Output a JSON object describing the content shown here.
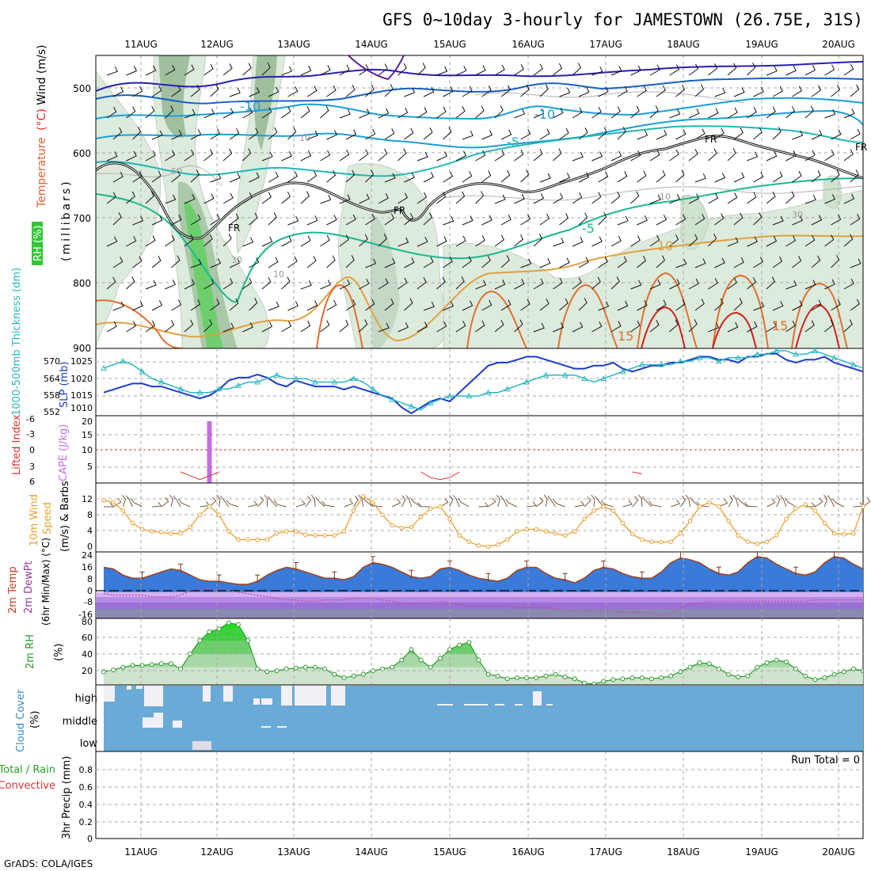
{
  "title": "GFS 0~10day 3-hourly for JAMESTOWN (26.75E, 31S)",
  "footer": "GrADS: COLA/IGES",
  "date_labels": [
    "11AUG",
    "12AUG",
    "13AUG",
    "14AUG",
    "15AUG",
    "16AUG",
    "17AUG",
    "18AUG",
    "19AUG",
    "20AUG"
  ],
  "panels": {
    "upper": {
      "label_parts": [
        {
          "text": "Wind (m/s)",
          "color": "#000000"
        },
        {
          "text": "(°C)",
          "color": "#e02020"
        },
        {
          "text": "Temperature",
          "color": "#3030d0"
        }
      ],
      "rh_label": "RH (%)",
      "ylabel": "(millibars)",
      "yticks": [
        "500",
        "600",
        "700",
        "800",
        "900"
      ]
    },
    "thickness": {
      "label_left": "1000-500mb Thickness (dm)",
      "label_right": "SLP (mb)",
      "left_ticks": [
        "570",
        "564",
        "558",
        "552"
      ],
      "right_ticks": [
        "1025",
        "1020",
        "1015",
        "1010"
      ]
    },
    "cape": {
      "label_left": "Lifted Index",
      "label_right": "CAPE (J/kg)",
      "left_ticks": [
        "-6",
        "-3",
        "0",
        "3",
        "6"
      ],
      "right_ticks": [
        "20",
        "15",
        "10",
        "5"
      ]
    },
    "wind": {
      "label_1": "10m Wind",
      "label_2": "Speed",
      "label_3": "(m/s) & Barbs",
      "yticks": [
        "12",
        "8",
        "4",
        "0"
      ]
    },
    "temp": {
      "label_1": "2m Temp",
      "label_2": "2m DewPt",
      "label_3": "(6hr Min/Max) (°C)",
      "yticks": [
        "24",
        "16",
        "8",
        "0",
        "-8",
        "-16"
      ]
    },
    "rh": {
      "label": "2m RH",
      "unit": "(%)",
      "yticks": [
        "80",
        "60",
        "40",
        "20"
      ]
    },
    "cloud": {
      "label": "Cloud Cover",
      "unit": "(%)",
      "levels": [
        "high",
        "middle",
        "low"
      ]
    },
    "precip": {
      "label_1": "Total / Rain",
      "label_2": "Convective",
      "ylabel": "3hr Precip (mm)",
      "yticks": [
        "0.8",
        "0.6",
        "0.4",
        "0.2",
        "0"
      ],
      "run_total": "Run Total = 0"
    }
  },
  "contour_labels": [
    "-10",
    "-10",
    "-5",
    "-5",
    "10",
    "15",
    "15",
    "FR",
    "FR",
    "FR",
    "FR",
    "10",
    "10",
    "30",
    "50",
    "30",
    "10"
  ],
  "colors": {
    "slp": "#1c3cc8",
    "thickness": "#2ab6c0",
    "wind_speed": "#e8a030",
    "barb": "#7a5a40",
    "rh_line": "#2a9a2a",
    "cloud": "#6aaad6",
    "cape_bar": "#c070e0",
    "lifted_index": "#e03030"
  },
  "chart_data": [
    {
      "type": "line",
      "title": "1000-500mb Thickness (dm) / SLP (mb)",
      "x": [
        0,
        3,
        6,
        9,
        12,
        15,
        18,
        21,
        24,
        27,
        30,
        33,
        36,
        39,
        42,
        45,
        48,
        51,
        54,
        57,
        60,
        63,
        66,
        69,
        72,
        75,
        78,
        81,
        84,
        87,
        90,
        93,
        96,
        99,
        102,
        105,
        108,
        111,
        114,
        117,
        120,
        123,
        126,
        129,
        132,
        135,
        138,
        141,
        144,
        147,
        150,
        153,
        156,
        159,
        162,
        165,
        168,
        171,
        174,
        177,
        180,
        183,
        186,
        189,
        192,
        195,
        198,
        201,
        204,
        207,
        210,
        213,
        216,
        219,
        222,
        225,
        228,
        231,
        234,
        237
      ],
      "series": [
        {
          "name": "SLP",
          "axis": "right",
          "values": [
            1014,
            1015,
            1016,
            1017,
            1017,
            1016,
            1016,
            1015,
            1014,
            1013,
            1012,
            1013,
            1015,
            1018,
            1019,
            1019,
            1020,
            1019,
            1017,
            1016,
            1018,
            1017,
            1016,
            1016,
            1016,
            1015,
            1016,
            1015,
            1014,
            1013,
            1012,
            1009,
            1007,
            1009,
            1011,
            1012,
            1011,
            1014,
            1017,
            1020,
            1023,
            1024,
            1024,
            1025,
            1026,
            1026,
            1025,
            1024,
            1023,
            1022,
            1022,
            1023,
            1023,
            1024,
            1022,
            1021,
            1022,
            1023,
            1023,
            1024,
            1024,
            1025,
            1026,
            1026,
            1025,
            1025,
            1024,
            1026,
            1026,
            1027,
            1027,
            1025,
            1024,
            1025,
            1025,
            1026,
            1024,
            1023,
            1022,
            1021
          ]
        },
        {
          "name": "Thickness",
          "axis": "left",
          "values": [
            565,
            566,
            567,
            566,
            564,
            562,
            561,
            560,
            559,
            558,
            558,
            558,
            559,
            559,
            560,
            561,
            561,
            562,
            563,
            562,
            562,
            562,
            561,
            561,
            561,
            561,
            562,
            561,
            559,
            557,
            556,
            555,
            554,
            553,
            555,
            556,
            557,
            557,
            557,
            557,
            558,
            558,
            559,
            560,
            561,
            562,
            563,
            563,
            563,
            563,
            562,
            561,
            562,
            563,
            564,
            565,
            566,
            566,
            566,
            566,
            567,
            567,
            568,
            568,
            567,
            568,
            568,
            568,
            569,
            569,
            570,
            570,
            569,
            569,
            570,
            569,
            568,
            567,
            566,
            565
          ]
        }
      ],
      "ylim_left": [
        552,
        570
      ],
      "ylim_right": [
        1007,
        1028
      ]
    },
    {
      "type": "bar",
      "title": "Lifted Index / CAPE (J/kg)",
      "series": [
        {
          "name": "CAPE",
          "points": [
            {
              "x": 33,
              "y": 20
            }
          ]
        },
        {
          "name": "Lifted Index",
          "points": [
            {
              "x": 24,
              "y": 6
            },
            {
              "x": 27,
              "y": 5
            },
            {
              "x": 30,
              "y": 4
            },
            {
              "x": 33,
              "y": 5
            },
            {
              "x": 36,
              "y": 6
            },
            {
              "x": 99,
              "y": 6
            },
            {
              "x": 102,
              "y": 4.5
            },
            {
              "x": 105,
              "y": 4
            },
            {
              "x": 108,
              "y": 4.5
            },
            {
              "x": 111,
              "y": 6
            },
            {
              "x": 165,
              "y": 6
            },
            {
              "x": 168,
              "y": 5.5
            }
          ]
        }
      ],
      "ylim_right": [
        0,
        20
      ],
      "ylim_left": [
        -6,
        6
      ]
    },
    {
      "type": "line",
      "title": "10m Wind Speed (m/s)",
      "x": [
        0,
        3,
        6,
        9,
        12,
        15,
        18,
        21,
        24,
        27,
        30,
        33,
        36,
        39,
        42,
        45,
        48,
        51,
        54,
        57,
        60,
        63,
        66,
        69,
        72,
        75,
        78,
        81,
        84,
        87,
        90,
        93,
        96,
        99,
        102,
        105,
        108,
        111,
        114,
        117,
        120,
        123,
        126,
        129,
        132,
        135,
        138,
        141,
        144,
        147,
        150,
        153,
        156,
        159,
        162,
        165,
        168,
        171,
        174,
        177,
        180,
        183,
        186,
        189,
        192,
        195,
        198,
        201,
        204,
        207,
        210,
        213,
        216,
        219,
        222,
        225,
        228,
        231,
        234,
        237
      ],
      "series": [
        {
          "name": "10m Wind Speed",
          "values": [
            11.5,
            11,
            9,
            6,
            4.5,
            4,
            3.8,
            3.5,
            3.5,
            5,
            8,
            10,
            8,
            4,
            2,
            2,
            2,
            2,
            3.5,
            4,
            4,
            3.2,
            3,
            3,
            3,
            4,
            9,
            12.5,
            11,
            8,
            5.5,
            4.8,
            5,
            7.5,
            9.5,
            10,
            7,
            3,
            1.5,
            0.6,
            0.3,
            0.8,
            2,
            4,
            4.5,
            4.5,
            4,
            3.5,
            3,
            4,
            7,
            9,
            10,
            9,
            6,
            3.3,
            2,
            1.5,
            1.4,
            1.5,
            3.5,
            6.5,
            10,
            11,
            10,
            6.5,
            3,
            1.5,
            1,
            1.5,
            3,
            7,
            9.5,
            10.5,
            9,
            6,
            3.5,
            3.3,
            3.5,
            10
          ]
        }
      ],
      "ylim": [
        0,
        13
      ]
    },
    {
      "type": "area",
      "title": "2m Temp / 2m DewPt (6hr Min/Max) (°C)",
      "x": [
        0,
        3,
        6,
        9,
        12,
        15,
        18,
        21,
        24,
        27,
        30,
        33,
        36,
        39,
        42,
        45,
        48,
        51,
        54,
        57,
        60,
        63,
        66,
        69,
        72,
        75,
        78,
        81,
        84,
        87,
        90,
        93,
        96,
        99,
        102,
        105,
        108,
        111,
        114,
        117,
        120,
        123,
        126,
        129,
        132,
        135,
        138,
        141,
        144,
        147,
        150,
        153,
        156,
        159,
        162,
        165,
        168,
        171,
        174,
        177,
        180,
        183,
        186,
        189,
        192,
        195,
        198,
        201,
        204,
        207,
        210,
        213,
        216,
        219,
        222,
        225,
        228,
        231,
        234,
        237
      ],
      "series": [
        {
          "name": "2m Temp",
          "values": [
            16,
            15,
            11,
            9,
            9,
            11,
            13,
            15,
            14,
            11,
            8,
            7,
            7,
            6,
            5,
            5,
            7,
            11,
            14,
            16,
            15,
            13,
            11,
            9,
            9,
            8,
            10,
            16,
            19,
            18,
            16,
            13,
            10,
            9,
            10,
            15,
            16,
            14,
            11,
            9,
            8,
            7,
            9,
            14,
            16,
            16,
            12,
            9,
            8,
            6,
            9,
            14,
            16,
            15,
            12,
            10,
            9,
            9,
            13,
            19,
            22,
            21,
            19,
            15,
            12,
            11,
            13,
            19,
            23,
            22,
            18,
            15,
            12,
            11,
            13,
            19,
            23,
            22,
            18,
            15
          ]
        },
        {
          "name": "2m DewPt",
          "values": [
            -1,
            -2,
            -2,
            -2,
            -2,
            -3,
            -3,
            -3,
            -2,
            1,
            2,
            2,
            2,
            1,
            0,
            -1,
            -2,
            -3,
            -4,
            -5,
            -5,
            -6,
            -6,
            -5,
            -5,
            -5,
            -4,
            -4,
            -4,
            -5,
            -6,
            -7,
            -7,
            -7,
            -7,
            -6,
            -7,
            -8,
            -9,
            -9,
            -9,
            -9,
            -9,
            -10,
            -10,
            -10,
            -10,
            -11,
            -12,
            -12,
            -12,
            -12,
            -12,
            -12,
            -13,
            -13,
            -13,
            -14,
            -15,
            -14,
            -10,
            -8,
            -7,
            -6,
            -6,
            -6,
            -6,
            -6,
            -6,
            -6,
            -6,
            -6,
            -6,
            -6,
            -5,
            -5,
            -5,
            -5,
            -5,
            -5
          ]
        }
      ],
      "ylim": [
        -17,
        26
      ]
    },
    {
      "type": "area",
      "title": "2m RH (%)",
      "x": [
        0,
        3,
        6,
        9,
        12,
        15,
        18,
        21,
        24,
        27,
        30,
        33,
        36,
        39,
        42,
        45,
        48,
        51,
        54,
        57,
        60,
        63,
        66,
        69,
        72,
        75,
        78,
        81,
        84,
        87,
        90,
        93,
        96,
        99,
        102,
        105,
        108,
        111,
        114,
        117,
        120,
        123,
        126,
        129,
        132,
        135,
        138,
        141,
        144,
        147,
        150,
        153,
        156,
        159,
        162,
        165,
        168,
        171,
        174,
        177,
        180,
        183,
        186,
        189,
        192,
        195,
        198,
        201,
        204,
        207,
        210,
        213,
        216,
        219,
        222,
        225,
        228,
        231,
        234,
        237
      ],
      "series": [
        {
          "name": "2m RH",
          "values": [
            25,
            27,
            30,
            32,
            32,
            33,
            34,
            34,
            28,
            45,
            60,
            70,
            73,
            80,
            78,
            60,
            28,
            25,
            26,
            28,
            29,
            30,
            30,
            28,
            22,
            18,
            20,
            22,
            26,
            28,
            30,
            38,
            50,
            38,
            30,
            40,
            50,
            55,
            58,
            38,
            22,
            20,
            17,
            18,
            18,
            18,
            20,
            22,
            19,
            17,
            12,
            11,
            14,
            16,
            17,
            18,
            18,
            17,
            18,
            20,
            25,
            30,
            35,
            34,
            28,
            22,
            19,
            20,
            30,
            35,
            38,
            36,
            28,
            20,
            16,
            18,
            22,
            25,
            28,
            26
          ]
        }
      ],
      "ylim": [
        10,
        85
      ]
    },
    {
      "type": "heatmap",
      "title": "Cloud Cover (%)",
      "categories": [
        "high",
        "middle",
        "low"
      ],
      "note": "mostly full cloud cover with gaps in high cloud through 16AUG"
    },
    {
      "type": "bar",
      "title": "3hr Precip (mm)",
      "values": [],
      "ylim": [
        0,
        1
      ]
    }
  ]
}
